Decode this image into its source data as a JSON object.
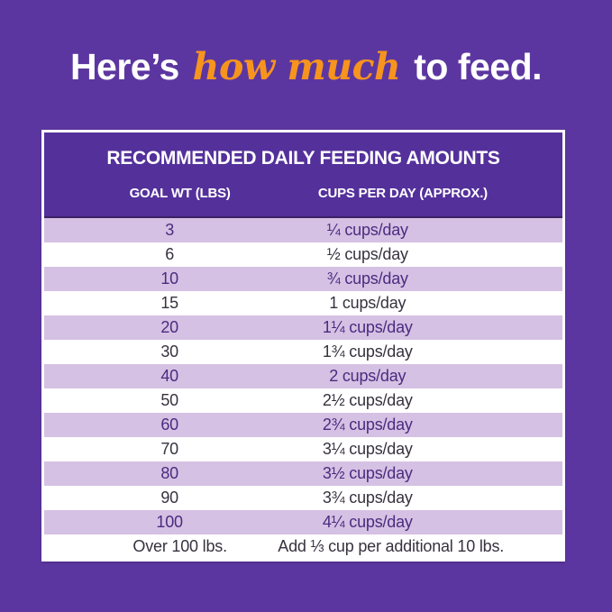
{
  "page": {
    "background_color": "#5c36a0",
    "accent_orange": "#f7941e",
    "row_stripe_color": "#d5c1e3",
    "header_purple": "#54309b"
  },
  "heading": {
    "prefix": "Here’s ",
    "highlight": "how much",
    "suffix": " to feed."
  },
  "table": {
    "title": "RECOMMENDED DAILY FEEDING AMOUNTS",
    "columns": {
      "goal_wt": "GOAL WT (LBS)",
      "cups_per_day": "CUPS PER DAY (APPROX.)"
    },
    "rows": [
      {
        "goal_wt": "3",
        "cups_per_day": "¼ cups/day"
      },
      {
        "goal_wt": "6",
        "cups_per_day": "½ cups/day"
      },
      {
        "goal_wt": "10",
        "cups_per_day": "¾ cups/day"
      },
      {
        "goal_wt": "15",
        "cups_per_day": "1 cups/day"
      },
      {
        "goal_wt": "20",
        "cups_per_day": "1¼ cups/day"
      },
      {
        "goal_wt": "30",
        "cups_per_day": "1¾ cups/day"
      },
      {
        "goal_wt": "40",
        "cups_per_day": "2 cups/day"
      },
      {
        "goal_wt": "50",
        "cups_per_day": "2½ cups/day"
      },
      {
        "goal_wt": "60",
        "cups_per_day": "2¾ cups/day"
      },
      {
        "goal_wt": "70",
        "cups_per_day": "3¼ cups/day"
      },
      {
        "goal_wt": "80",
        "cups_per_day": "3½ cups/day"
      },
      {
        "goal_wt": "90",
        "cups_per_day": "3¾ cups/day"
      },
      {
        "goal_wt": "100",
        "cups_per_day": "4¼ cups/day"
      }
    ],
    "footer_row": {
      "goal_wt": "Over 100 lbs.",
      "cups_per_day": "Add ⅓ cup per additional 10 lbs."
    }
  }
}
